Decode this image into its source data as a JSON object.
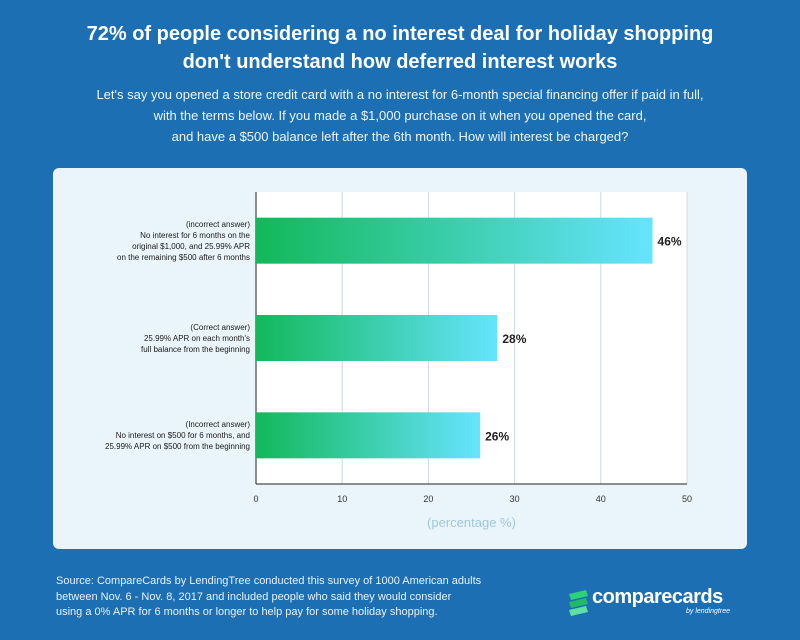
{
  "header": {
    "title_line1": "72% of people considering a no interest deal for holiday shopping",
    "title_line2": "don't understand how deferred interest works",
    "subtitle_line1": "Let's say you opened a store credit card with a no interest for 6-month special financing offer if paid in full,",
    "subtitle_line2": "with the terms below. If you made a $1,000 purchase on it when you opened the card,",
    "subtitle_line3": "and have a $500 balance left after the 6th month. How will interest be charged?"
  },
  "chart_data": {
    "type": "bar",
    "orientation": "horizontal",
    "categories": [
      [
        "(incorrect answer)",
        "No interest for 6 months on the",
        "original $1,000, and 25.99% APR",
        "on the remaining $500 after 6 months"
      ],
      [
        "(Correct answer)",
        "25.99% APR on each month's",
        "full balance from the beginning"
      ],
      [
        "(Incorrect answer)",
        "No interest on $500 for 6 months, and",
        "25.99% APR on $500 from the beginning"
      ]
    ],
    "values": [
      46,
      28,
      26
    ],
    "value_labels": [
      "46%",
      "28%",
      "26%"
    ],
    "xlim": [
      0,
      50
    ],
    "xticks": [
      0,
      10,
      20,
      30,
      40,
      50
    ],
    "xtick_labels": [
      "0",
      "10",
      "20",
      "30",
      "40",
      "50"
    ],
    "xlabel": "(percentage %)",
    "grid": "vertical",
    "colors": {
      "gradient_start": "#12b85a",
      "gradient_end": "#66e4ff"
    }
  },
  "footer": {
    "source_line1": "Source: CompareCards by LendingTree conducted this survey of 1000 American adults",
    "source_line2": "between Nov. 6 - Nov. 8, 2017 and included people who said they would consider",
    "source_line3": "using a 0% APR for 6 months or longer to help pay for some holiday shopping.",
    "logo_text": "comparecards",
    "logo_sub": "by lendingtree"
  }
}
